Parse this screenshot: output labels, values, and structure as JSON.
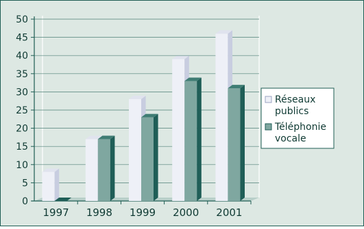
{
  "chart_data": {
    "type": "bar",
    "title": "",
    "xlabel": "",
    "ylabel": "",
    "categories": [
      "1997",
      "1998",
      "1999",
      "2000",
      "2001"
    ],
    "series": [
      {
        "name": "Réseaux publics",
        "values": [
          8,
          17,
          28,
          39,
          46
        ]
      },
      {
        "name": "Téléphonie vocale",
        "values": [
          0,
          17,
          23,
          33,
          31
        ]
      }
    ],
    "ylim": [
      0,
      50
    ],
    "yticks": [
      0,
      5,
      10,
      15,
      20,
      25,
      30,
      35,
      40,
      45,
      50
    ],
    "grid": "horizontal",
    "legend": "right",
    "legend_labels": [
      [
        "Réseaux",
        "publics"
      ],
      [
        "Téléphonie",
        "vocale"
      ]
    ],
    "colors": {
      "background": "#dde8e3",
      "series1_front": "#eef0f7",
      "series1_side": "#c8cde0",
      "series1_top": "#e0e3ee",
      "series2_front": "#7fa7a0",
      "series2_side": "#1f5e57",
      "series2_top": "#3f7d74",
      "floor": "#b8cfc9",
      "axis": "#1e5d53",
      "text": "#0f3a33"
    }
  }
}
